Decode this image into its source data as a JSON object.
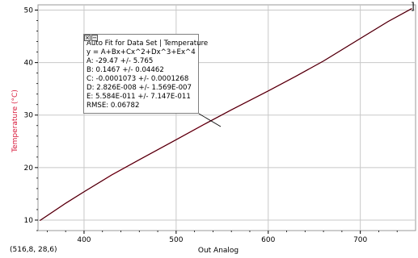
{
  "chart_data": {
    "type": "line",
    "xlabel": "Out Analog",
    "ylabel": "Temperature (°C)",
    "xlim": [
      350,
      760
    ],
    "ylim": [
      8,
      51
    ],
    "x_ticks": [
      400,
      500,
      600,
      700
    ],
    "y_ticks": [
      10,
      20,
      30,
      40,
      50
    ],
    "grid": true,
    "series": [
      {
        "color": "#d81b3c",
        "x": [
          352,
          380,
          400,
          430,
          460,
          500,
          530,
          560,
          600,
          630,
          660,
          700,
          730,
          756
        ],
        "y": [
          9.9,
          13.2,
          15.4,
          18.6,
          21.5,
          25.3,
          28.2,
          31.0,
          34.6,
          37.4,
          40.3,
          44.6,
          47.8,
          50.3
        ]
      },
      {
        "color": "#000000",
        "x": [
          352,
          380,
          400,
          430,
          460,
          500,
          530,
          560,
          600,
          630,
          660,
          700,
          730,
          756
        ],
        "y": [
          9.9,
          13.2,
          15.4,
          18.6,
          21.5,
          25.3,
          28.2,
          31.0,
          34.6,
          37.4,
          40.3,
          44.6,
          47.8,
          50.3
        ]
      }
    ],
    "annotation": {
      "title": "Auto Fit for  Data Set | Temperature",
      "equation": "y = A+Bx+Cx^2+Dx^3+Ex^4",
      "params": [
        "A: -29.47 +/- 5.765",
        "B: 0.1467 +/- 0.04462",
        "C: -0.0001073 +/- 0.0001268",
        "D: 2.826E-008 +/- 1.569E-007",
        "E: 5.584E-011 +/- 7.147E-011"
      ],
      "rmse": "RMSE: 0.06782"
    },
    "cursor_readout": "(516,8, 28,6)",
    "end_bracket": "]"
  },
  "colors": {
    "ylabel": "#d81b3c",
    "grid": "#c8c8c8"
  },
  "icons": [
    "close-icon",
    "minimize-icon"
  ]
}
